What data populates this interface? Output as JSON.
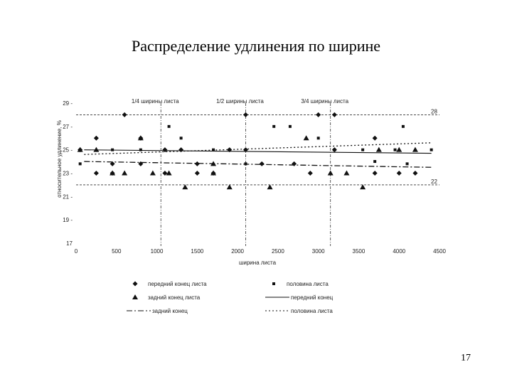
{
  "slide": {
    "title": "Распределение удлинения по ширине",
    "page_number": "17"
  },
  "chart_data": {
    "type": "scatter",
    "title": "",
    "xlabel": "ширина листа",
    "ylabel": "относительное удлинение, %",
    "xlim": [
      0,
      4500
    ],
    "ylim": [
      17,
      29
    ],
    "x_ticks": [
      "0",
      "500",
      "1000",
      "1500",
      "2000",
      "2500",
      "3000",
      "3500",
      "4000",
      "4500"
    ],
    "y_ticks": [
      "17",
      "19",
      "21",
      "23",
      "25",
      "27",
      "29"
    ],
    "grid": false,
    "legend_position": "bottom",
    "reference_lines": {
      "horizontal": [
        {
          "value": 28,
          "label": "28"
        },
        {
          "value": 22,
          "label": "22"
        }
      ],
      "vertical": [
        {
          "value": 1050,
          "label": "1/4 ширины листа"
        },
        {
          "value": 2100,
          "label": "1/2 ширины листа"
        },
        {
          "value": 3150,
          "label": "3/4 ширины листа"
        }
      ]
    },
    "series": [
      {
        "name": "передний конец листа",
        "marker": "diamond",
        "points": [
          [
            50,
            25.0
          ],
          [
            250,
            26.0
          ],
          [
            250,
            23.0
          ],
          [
            450,
            23.8
          ],
          [
            450,
            23.0
          ],
          [
            600,
            28.0
          ],
          [
            800,
            26.0
          ],
          [
            800,
            23.8
          ],
          [
            1100,
            25.0
          ],
          [
            1100,
            23.0
          ],
          [
            1300,
            25.0
          ],
          [
            1500,
            23.8
          ],
          [
            1500,
            23.0
          ],
          [
            1700,
            23.0
          ],
          [
            1900,
            25.0
          ],
          [
            2100,
            28.0
          ],
          [
            2100,
            25.0
          ],
          [
            2300,
            23.8
          ],
          [
            2700,
            23.8
          ],
          [
            2900,
            23.0
          ],
          [
            3000,
            28.0
          ],
          [
            3200,
            28.0
          ],
          [
            3200,
            25.0
          ],
          [
            3700,
            26.0
          ],
          [
            3700,
            23.0
          ],
          [
            4000,
            23.0
          ],
          [
            4200,
            23.0
          ]
        ]
      },
      {
        "name": "половина листа",
        "marker": "square",
        "points": [
          [
            50,
            23.8
          ],
          [
            450,
            25.0
          ],
          [
            800,
            25.0
          ],
          [
            1150,
            27.0
          ],
          [
            1300,
            26.0
          ],
          [
            1700,
            25.0
          ],
          [
            1900,
            25.0
          ],
          [
            2100,
            23.8
          ],
          [
            2450,
            27.0
          ],
          [
            2650,
            27.0
          ],
          [
            3000,
            26.0
          ],
          [
            3200,
            25.0
          ],
          [
            3550,
            25.0
          ],
          [
            3700,
            24.0
          ],
          [
            3950,
            25.0
          ],
          [
            4050,
            27.0
          ],
          [
            4100,
            23.8
          ],
          [
            4400,
            25.0
          ]
        ]
      },
      {
        "name": "задний конец листа",
        "marker": "triangle",
        "points": [
          [
            50,
            25.0
          ],
          [
            250,
            25.0
          ],
          [
            450,
            23.0
          ],
          [
            600,
            23.0
          ],
          [
            800,
            26.0
          ],
          [
            950,
            23.0
          ],
          [
            1150,
            23.0
          ],
          [
            1350,
            21.8
          ],
          [
            1700,
            23.0
          ],
          [
            1700,
            23.8
          ],
          [
            1900,
            21.8
          ],
          [
            2400,
            21.8
          ],
          [
            2850,
            26.0
          ],
          [
            3150,
            23.0
          ],
          [
            3350,
            23.0
          ],
          [
            3550,
            21.8
          ],
          [
            3750,
            25.0
          ],
          [
            4000,
            25.0
          ],
          [
            4200,
            25.0
          ]
        ]
      },
      {
        "name": "передний конец",
        "line_style": "solid",
        "points": [
          [
            100,
            25.0
          ],
          [
            4400,
            24.7
          ]
        ]
      },
      {
        "name": "задний конец",
        "line_style": "dash-dot",
        "points": [
          [
            100,
            24.0
          ],
          [
            4400,
            23.5
          ]
        ]
      },
      {
        "name": "половина листа",
        "line_style": "dotted",
        "points": [
          [
            100,
            24.6
          ],
          [
            4400,
            25.6
          ]
        ]
      }
    ]
  }
}
